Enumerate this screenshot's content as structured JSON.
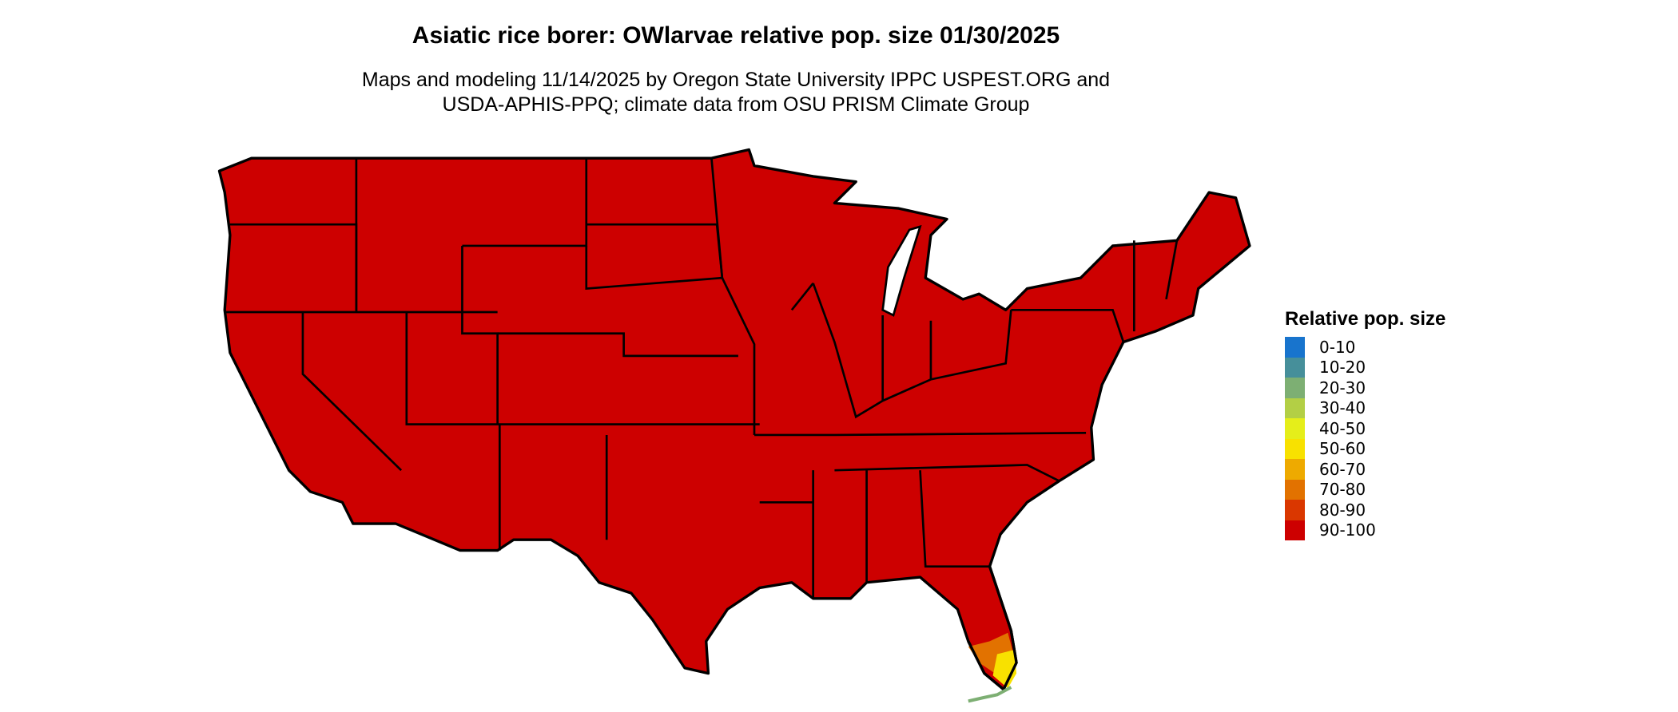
{
  "title": "Asiatic rice borer: OWlarvae relative pop. size 01/30/2025",
  "subtitle_line1": "Maps and modeling 11/14/2025 by Oregon State University IPPC USPEST.ORG and",
  "subtitle_line2": "USDA-APHIS-PPQ; climate data from OSU PRISM Climate Group",
  "legend": {
    "title": "Relative pop. size",
    "items": [
      {
        "label": "0-10",
        "color": "#1874CD"
      },
      {
        "label": "10-20",
        "color": "#468F9A"
      },
      {
        "label": "20-30",
        "color": "#7DAF73"
      },
      {
        "label": "30-40",
        "color": "#B3CF45"
      },
      {
        "label": "40-50",
        "color": "#E5EE1A"
      },
      {
        "label": "50-60",
        "color": "#F8E100"
      },
      {
        "label": "60-70",
        "color": "#EEAA00"
      },
      {
        "label": "70-80",
        "color": "#E27200"
      },
      {
        "label": "80-90",
        "color": "#DA3700"
      },
      {
        "label": "90-100",
        "color": "#CD0000"
      }
    ]
  },
  "map": {
    "region": "Contiguous United States",
    "dominant_class": "90-100",
    "dominant_color": "#CD0000",
    "south_florida_classes": [
      "80-90",
      "70-80",
      "50-60",
      "20-30"
    ]
  }
}
